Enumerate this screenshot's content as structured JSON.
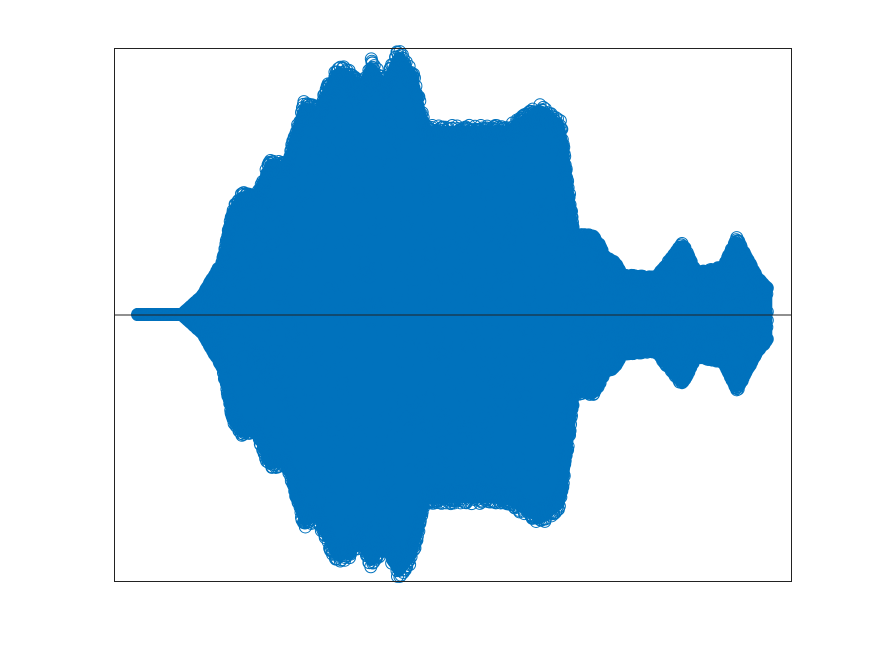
{
  "chart_data": {
    "type": "scatter",
    "title": "",
    "xlabel": "",
    "ylabel": "",
    "axis_ticks_visible": false,
    "grid": false,
    "zero_line": true,
    "marker": "o",
    "marker_fill": "none",
    "color": "#0072BD",
    "xlim": [
      0,
      1
    ],
    "ylim": [
      -1,
      1
    ],
    "series": [
      {
        "envelope_x": [
          0.035,
          0.045,
          0.05,
          0.1,
          0.13,
          0.16,
          0.175,
          0.19,
          0.21,
          0.23,
          0.255,
          0.28,
          0.3,
          0.33,
          0.35,
          0.365,
          0.38,
          0.4,
          0.42,
          0.44,
          0.45,
          0.46,
          0.5,
          0.55,
          0.58,
          0.63,
          0.66,
          0.68,
          0.71,
          0.725,
          0.74,
          0.75,
          0.8,
          0.84,
          0.86,
          0.9,
          0.92,
          0.95,
          0.965
        ],
        "envelope_y": [
          0.0,
          0.0,
          0.0,
          0.0,
          0.07,
          0.2,
          0.4,
          0.46,
          0.45,
          0.58,
          0.57,
          0.8,
          0.78,
          0.94,
          0.92,
          0.86,
          0.96,
          0.88,
          1.0,
          0.93,
          0.82,
          0.71,
          0.71,
          0.71,
          0.71,
          0.79,
          0.73,
          0.3,
          0.3,
          0.22,
          0.2,
          0.15,
          0.14,
          0.27,
          0.16,
          0.18,
          0.29,
          0.14,
          0.1
        ]
      }
    ]
  }
}
